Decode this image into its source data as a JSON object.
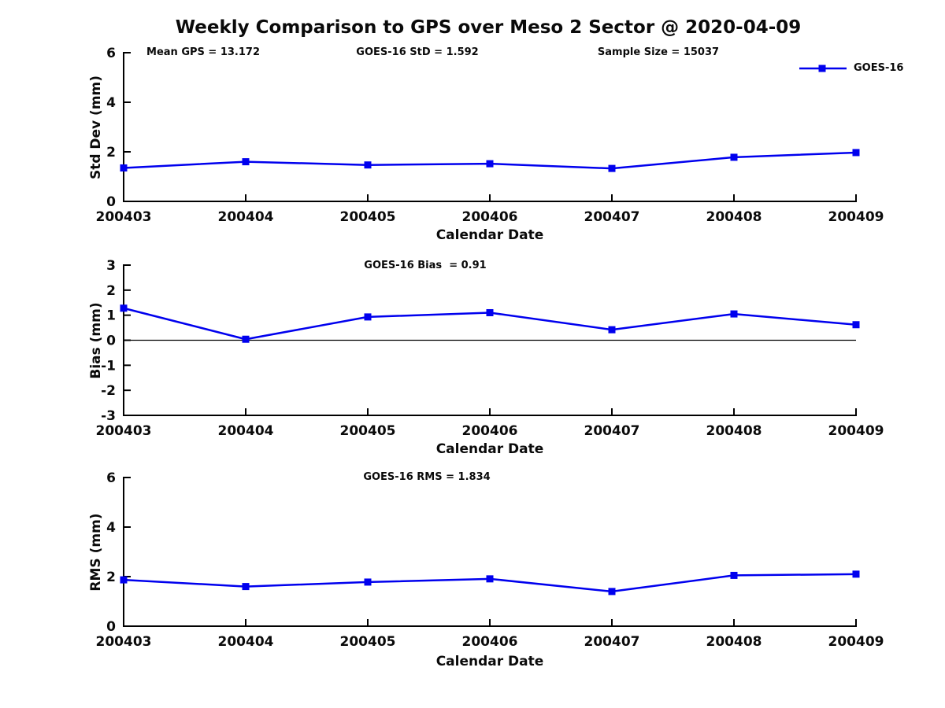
{
  "title": "Weekly Comparison to GPS over Meso 2 Sector @ 2020-04-09",
  "legend": {
    "label": "GOES-16"
  },
  "colors": {
    "line": "#0000ee",
    "marker": "#0000ee",
    "axis": "#000000",
    "zero_line": "#000000",
    "text": "#0a0a0a"
  },
  "chart_data": [
    {
      "id": "std-dev",
      "type": "line",
      "categories": [
        "200403",
        "200404",
        "200405",
        "200406",
        "200407",
        "200408",
        "200409"
      ],
      "series": [
        {
          "name": "GOES-16",
          "values": [
            1.35,
            1.6,
            1.47,
            1.52,
            1.33,
            1.78,
            1.97
          ]
        }
      ],
      "xlabel": "Calendar Date",
      "ylabel": "Std Dev (mm)",
      "ylim": [
        0,
        6
      ],
      "yticks": [
        0,
        2,
        4,
        6
      ],
      "grid": false,
      "zero_line": false,
      "legend_position": "top-right-outside",
      "annotations": [
        "Mean GPS = 13.172",
        "GOES-16 StD = 1.592",
        "Sample Size = 15037"
      ]
    },
    {
      "id": "bias",
      "type": "line",
      "categories": [
        "200403",
        "200404",
        "200405",
        "200406",
        "200407",
        "200408",
        "200409"
      ],
      "series": [
        {
          "name": "GOES-16",
          "values": [
            1.28,
            0.04,
            0.93,
            1.1,
            0.42,
            1.05,
            0.62
          ]
        }
      ],
      "xlabel": "Calendar Date",
      "ylabel": "Bias (mm)",
      "ylim": [
        -3,
        3
      ],
      "yticks": [
        -3,
        -2,
        -1,
        0,
        1,
        2,
        3
      ],
      "grid": false,
      "zero_line": true,
      "annotations": [
        "GOES-16 Bias  = 0.91"
      ]
    },
    {
      "id": "rms",
      "type": "line",
      "categories": [
        "200403",
        "200404",
        "200405",
        "200406",
        "200407",
        "200408",
        "200409"
      ],
      "series": [
        {
          "name": "GOES-16",
          "values": [
            1.87,
            1.6,
            1.78,
            1.91,
            1.4,
            2.05,
            2.1
          ]
        }
      ],
      "xlabel": "Calendar Date",
      "ylabel": "RMS (mm)",
      "ylim": [
        0,
        6
      ],
      "yticks": [
        0,
        2,
        4,
        6
      ],
      "grid": false,
      "zero_line": false,
      "annotations": [
        "GOES-16 RMS = 1.834"
      ]
    }
  ]
}
